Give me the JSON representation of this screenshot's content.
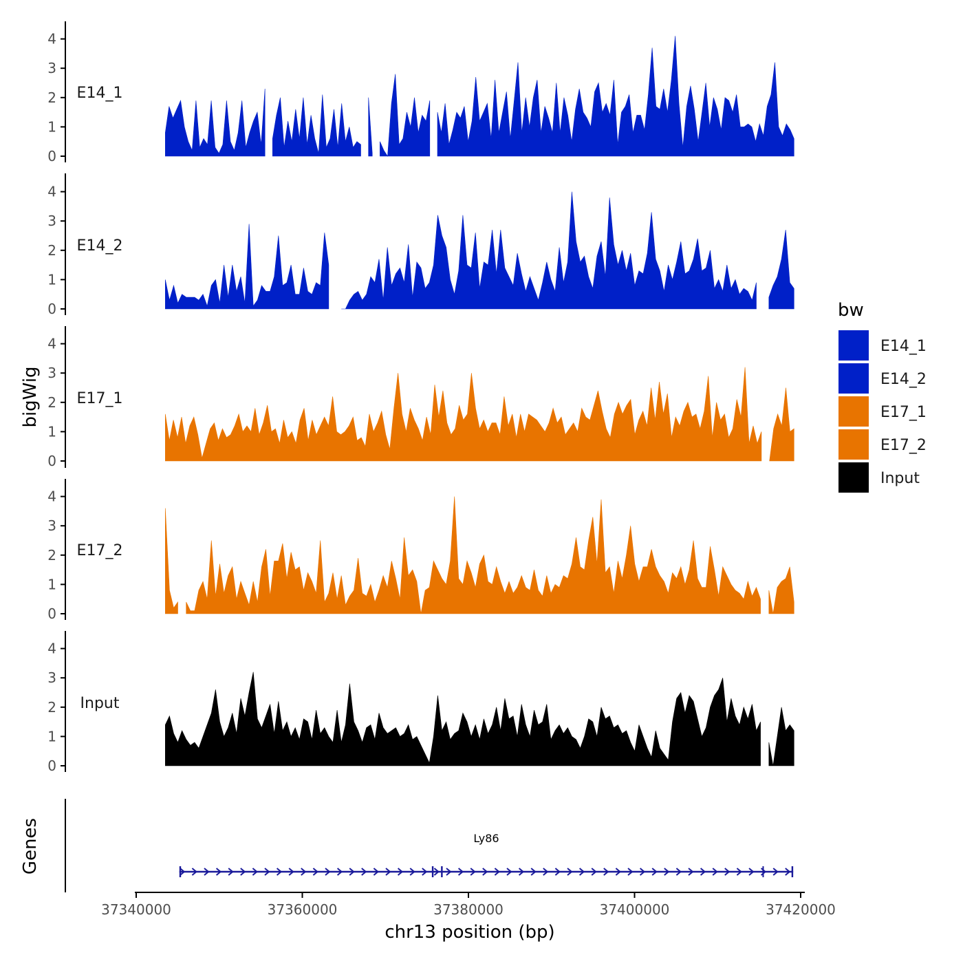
{
  "chart_data": {
    "type": "area",
    "title": "",
    "ylabel": "bigWig",
    "xlabel": "chr13 position (bp)",
    "genes_label": "Genes",
    "xlim": [
      37338500,
      37420000
    ],
    "data_range": [
      37343500,
      37419200
    ],
    "ylim": [
      0,
      4.5
    ],
    "y_ticks": [
      0,
      1,
      2,
      3,
      4
    ],
    "x_ticks": [
      {
        "value": 37340000,
        "label": "37340000"
      },
      {
        "value": 37360000,
        "label": "37360000"
      },
      {
        "value": 37380000,
        "label": "37380000"
      },
      {
        "value": 37400000,
        "label": "37400000"
      },
      {
        "value": 37420000,
        "label": "37420000"
      }
    ],
    "legend": {
      "title": "bw",
      "position": "right",
      "entries": [
        {
          "label": "E14_1",
          "color": "#0020C8"
        },
        {
          "label": "E14_2",
          "color": "#0020C8"
        },
        {
          "label": "E17_1",
          "color": "#E87400"
        },
        {
          "label": "E17_2",
          "color": "#E87400"
        },
        {
          "label": "Input",
          "color": "#000000"
        }
      ]
    },
    "series": [
      {
        "name": "E14_1",
        "color": "#0020C8",
        "values": [
          0.8,
          1.7,
          1.3,
          1.6,
          1.9,
          1.0,
          0.5,
          0.2,
          1.9,
          0.3,
          0.6,
          0.4,
          1.9,
          0.3,
          0.1,
          0.4,
          1.9,
          0.5,
          0.2,
          0.8,
          1.9,
          0.3,
          0.8,
          1.2,
          1.5,
          0.4,
          2.3,
          0.4,
          0.6,
          1.4,
          2.0,
          0.3,
          1.2,
          0.5,
          1.6,
          0.6,
          2.0,
          0.4,
          1.4,
          0.6,
          0.1,
          2.1,
          0.3,
          0.6,
          1.6,
          0.3,
          1.8,
          0.5,
          1.0,
          0.3,
          0.5,
          0.4,
          1.2,
          2.0,
          0.1,
          0.0,
          0.5,
          0.2,
          0.0,
          1.8,
          2.8,
          0.4,
          0.6,
          1.5,
          1.0,
          2.0,
          0.8,
          1.4,
          1.2,
          1.9,
          0.3,
          1.5,
          0.8,
          1.8,
          0.4,
          0.9,
          1.5,
          1.3,
          1.7,
          0.5,
          1.2,
          2.7,
          1.2,
          1.5,
          1.8,
          0.6,
          2.6,
          0.8,
          1.5,
          2.2,
          0.6,
          1.9,
          3.2,
          0.8,
          2.0,
          1.0,
          2.0,
          2.6,
          0.8,
          1.7,
          1.3,
          0.8,
          2.5,
          0.8,
          2.0,
          1.4,
          0.5,
          1.6,
          2.3,
          1.5,
          1.3,
          1.0,
          2.2,
          2.5,
          1.5,
          1.8,
          1.4,
          2.6,
          0.4,
          1.5,
          1.7,
          2.1,
          0.8,
          1.4,
          1.4,
          0.9,
          2.1,
          3.7,
          1.7,
          1.6,
          2.3,
          1.5,
          2.6,
          4.1,
          1.8,
          0.3,
          1.7,
          2.4,
          1.6,
          0.5,
          1.5,
          2.5,
          1.0,
          2.0,
          1.6,
          0.9,
          2.0,
          1.9,
          1.5,
          2.1,
          1.0,
          1.0,
          1.1,
          1.0,
          0.5,
          1.1,
          0.7,
          1.7,
          2.1,
          3.2,
          1.0,
          0.7,
          1.1,
          0.9,
          0.6
        ]
      },
      {
        "name": "E14_2",
        "color": "#0020C8",
        "values": [
          1.0,
          0.3,
          0.8,
          0.2,
          0.5,
          0.4,
          0.4,
          0.4,
          0.3,
          0.5,
          0.1,
          0.8,
          1.0,
          0.2,
          1.5,
          0.4,
          1.5,
          0.6,
          1.1,
          0.2,
          2.9,
          0.1,
          0.3,
          0.8,
          0.6,
          0.6,
          1.1,
          2.5,
          0.8,
          0.9,
          1.5,
          0.5,
          0.5,
          1.4,
          0.6,
          0.5,
          0.9,
          0.8,
          2.6,
          1.5,
          0.5,
          0.0,
          0.0,
          0.0,
          0.3,
          0.5,
          0.6,
          0.3,
          0.5,
          1.1,
          0.9,
          1.7,
          0.3,
          2.1,
          0.8,
          1.2,
          1.4,
          0.9,
          2.2,
          0.4,
          1.6,
          1.4,
          0.7,
          0.9,
          1.5,
          3.2,
          2.5,
          2.1,
          1.0,
          0.5,
          1.3,
          3.2,
          1.5,
          1.4,
          2.6,
          0.7,
          1.6,
          1.5,
          2.7,
          1.2,
          2.7,
          1.4,
          1.1,
          0.8,
          1.9,
          1.2,
          0.6,
          1.1,
          0.7,
          0.3,
          0.9,
          1.6,
          1.0,
          0.6,
          2.1,
          0.9,
          1.6,
          4.0,
          2.3,
          1.6,
          1.8,
          1.1,
          0.7,
          1.8,
          2.3,
          1.1,
          3.8,
          2.2,
          1.5,
          2.0,
          1.3,
          1.9,
          0.8,
          1.3,
          1.2,
          1.9,
          3.3,
          1.7,
          1.3,
          0.6,
          1.5,
          1.0,
          1.6,
          2.3,
          1.2,
          1.3,
          1.7,
          2.4,
          1.3,
          1.4,
          2.0,
          0.7,
          1.0,
          0.6,
          1.5,
          0.7,
          1.0,
          0.5,
          0.7,
          0.6,
          0.3,
          0.9,
          0.9,
          0.6,
          0.4,
          0.8,
          1.1,
          1.7,
          2.7,
          0.9,
          0.7
        ]
      },
      {
        "name": "E17_1",
        "color": "#E87400",
        "values": [
          1.6,
          0.7,
          1.4,
          0.8,
          1.5,
          0.6,
          1.2,
          1.5,
          0.9,
          0.1,
          0.6,
          1.1,
          1.3,
          0.7,
          1.1,
          0.8,
          0.9,
          1.2,
          1.6,
          1.0,
          1.2,
          1.0,
          1.8,
          0.9,
          1.3,
          1.9,
          1.0,
          1.1,
          0.6,
          1.4,
          0.8,
          1.0,
          0.6,
          1.4,
          1.8,
          0.7,
          1.4,
          0.9,
          1.2,
          1.5,
          1.2,
          2.2,
          1.0,
          0.9,
          1.0,
          1.2,
          1.5,
          0.7,
          0.8,
          0.5,
          1.6,
          1.0,
          1.3,
          1.7,
          0.9,
          0.4,
          1.8,
          3.0,
          1.6,
          1.0,
          1.8,
          1.4,
          1.1,
          0.7,
          1.5,
          0.9,
          2.6,
          1.5,
          2.4,
          1.3,
          0.9,
          1.1,
          1.9,
          1.4,
          1.6,
          3.0,
          1.8,
          1.1,
          1.4,
          1.0,
          1.3,
          1.3,
          0.9,
          2.2,
          1.2,
          1.6,
          0.8,
          1.6,
          1.0,
          1.6,
          1.5,
          1.4,
          1.2,
          1.0,
          1.3,
          1.8,
          1.3,
          1.5,
          0.9,
          1.1,
          1.3,
          1.0,
          1.8,
          1.5,
          1.4,
          1.9,
          2.4,
          1.7,
          1.1,
          0.8,
          1.6,
          2.0,
          1.6,
          1.9,
          2.1,
          0.9,
          1.4,
          1.7,
          1.2,
          2.5,
          1.4,
          2.7,
          1.6,
          2.3,
          0.8,
          1.5,
          1.2,
          1.7,
          2.0,
          1.5,
          1.6,
          1.1,
          1.7,
          2.9,
          0.8,
          2.0,
          1.4,
          1.6,
          0.8,
          1.1,
          2.1,
          1.5,
          3.2,
          0.6,
          1.2,
          0.6,
          1.0,
          0.8,
          0.0,
          1.1,
          1.6,
          1.2,
          2.5,
          1.0,
          1.1
        ]
      },
      {
        "name": "E17_2",
        "color": "#E87400",
        "values": [
          3.6,
          0.8,
          0.2,
          0.4,
          0.0,
          0.4,
          0.1,
          0.1,
          0.8,
          1.1,
          0.5,
          2.5,
          0.6,
          1.7,
          0.7,
          1.3,
          1.6,
          0.5,
          1.1,
          0.7,
          0.3,
          1.1,
          0.4,
          1.6,
          2.2,
          0.6,
          1.8,
          1.8,
          2.4,
          1.2,
          2.1,
          1.5,
          1.6,
          0.8,
          1.4,
          1.1,
          0.7,
          2.5,
          0.4,
          0.7,
          1.4,
          0.5,
          1.3,
          0.3,
          0.6,
          0.8,
          1.9,
          0.7,
          0.6,
          1.0,
          0.4,
          0.8,
          1.3,
          0.9,
          1.8,
          1.2,
          0.5,
          2.6,
          1.3,
          1.5,
          1.1,
          0.0,
          0.8,
          0.9,
          1.8,
          1.5,
          1.2,
          1.0,
          1.8,
          4.0,
          1.2,
          1.0,
          1.8,
          1.4,
          0.9,
          1.7,
          2.0,
          1.1,
          1.0,
          1.6,
          1.1,
          0.7,
          1.1,
          0.7,
          0.9,
          1.3,
          0.9,
          0.8,
          1.5,
          0.8,
          0.6,
          1.3,
          0.7,
          1.0,
          0.9,
          1.3,
          1.2,
          1.7,
          2.6,
          1.6,
          1.5,
          2.5,
          3.3,
          1.7,
          3.9,
          1.4,
          1.6,
          0.7,
          1.8,
          1.2,
          2.0,
          3.0,
          1.7,
          1.1,
          1.6,
          1.6,
          2.2,
          1.6,
          1.3,
          1.1,
          0.7,
          1.4,
          1.2,
          1.6,
          1.0,
          1.5,
          2.5,
          1.2,
          0.9,
          0.9,
          2.3,
          1.5,
          0.6,
          1.6,
          1.3,
          1.0,
          0.8,
          0.7,
          0.5,
          1.1,
          0.6,
          0.9,
          0.5,
          0.9,
          0.8,
          0.0,
          0.9,
          1.1,
          1.2,
          1.6,
          0.4
        ]
      },
      {
        "name": "Input",
        "color": "#000000",
        "values": [
          1.4,
          1.7,
          1.1,
          0.8,
          1.2,
          0.9,
          0.7,
          0.8,
          0.6,
          1.0,
          1.4,
          1.8,
          2.6,
          1.5,
          1.0,
          1.3,
          1.8,
          1.1,
          2.3,
          1.7,
          2.5,
          3.2,
          1.6,
          1.3,
          1.7,
          2.1,
          1.1,
          2.2,
          1.2,
          1.5,
          1.0,
          1.3,
          0.9,
          1.6,
          1.5,
          0.9,
          1.9,
          1.1,
          1.3,
          1.0,
          0.8,
          1.9,
          0.8,
          1.4,
          2.8,
          1.5,
          1.2,
          0.8,
          1.3,
          1.4,
          0.9,
          1.8,
          1.3,
          1.1,
          1.2,
          1.3,
          1.0,
          1.1,
          1.4,
          0.9,
          1.0,
          0.7,
          0.4,
          0.1,
          1.0,
          2.4,
          1.2,
          1.5,
          0.9,
          1.1,
          1.2,
          1.8,
          1.5,
          1.0,
          1.4,
          0.9,
          1.6,
          1.1,
          1.4,
          2.0,
          1.2,
          2.3,
          1.6,
          1.7,
          1.0,
          2.1,
          1.4,
          1.0,
          1.9,
          1.4,
          1.5,
          2.1,
          0.9,
          1.2,
          1.4,
          1.1,
          1.3,
          1.0,
          0.9,
          0.6,
          1.0,
          1.6,
          1.5,
          1.0,
          2.0,
          1.6,
          1.7,
          1.3,
          1.4,
          1.1,
          1.2,
          0.8,
          0.5,
          1.4,
          1.0,
          0.6,
          0.3,
          1.2,
          0.6,
          0.4,
          0.2,
          1.5,
          2.3,
          2.5,
          1.8,
          2.4,
          2.2,
          1.6,
          1.0,
          1.3,
          2.0,
          2.4,
          2.6,
          3.0,
          1.5,
          2.3,
          1.7,
          1.4,
          2.0,
          1.6,
          2.1,
          1.2,
          1.5,
          1.1,
          0.8,
          0.0,
          1.0,
          2.0,
          1.2,
          1.4,
          1.2
        ]
      }
    ],
    "gaps": {
      "E14_1": [
        [
          37355900,
          37356200
        ],
        [
          37367500,
          37367800
        ],
        [
          37368700,
          37369000
        ],
        [
          37375700,
          37376100
        ],
        [
          37415600,
          37415900
        ]
      ],
      "E14_2": [
        [
          37363200,
          37364200
        ],
        [
          37392500,
          37392800
        ],
        [
          37415100,
          37415900
        ]
      ],
      "E17_1": [
        [
          37415300,
          37415900
        ]
      ],
      "E17_2": [
        [
          37345200,
          37345700
        ],
        [
          37415300,
          37415900
        ]
      ],
      "Input": [
        [
          37415400,
          37415900
        ]
      ]
    },
    "gene": {
      "name": "Ly86",
      "strand": "+",
      "start": 37345200,
      "end": 37419100,
      "exons": [
        [
          37345200,
          37345400
        ],
        [
          37375600,
          37375800
        ],
        [
          37376700,
          37376900
        ],
        [
          37415400,
          37415500
        ],
        [
          37418900,
          37419100
        ]
      ],
      "color": "#1A1A9A"
    }
  }
}
